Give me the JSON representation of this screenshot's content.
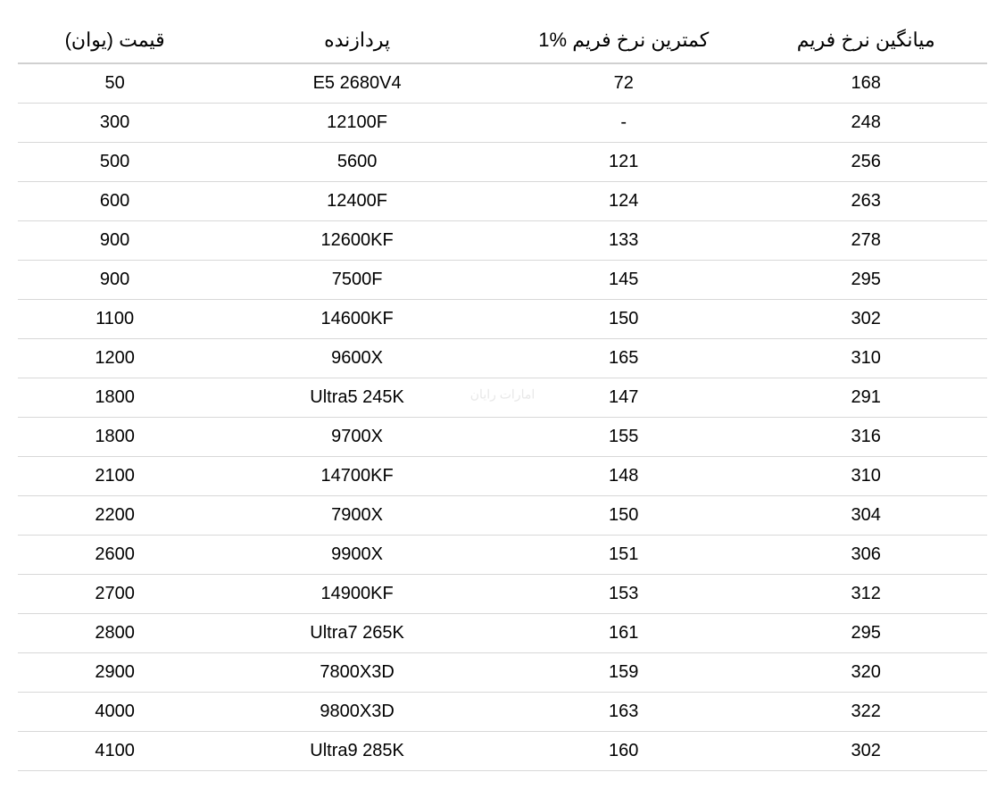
{
  "table": {
    "columns": [
      {
        "key": "price",
        "label": "قیمت (یوان)",
        "class": "col-price"
      },
      {
        "key": "cpu",
        "label": "پردازنده",
        "class": "col-cpu"
      },
      {
        "key": "low1",
        "label": "1% کمترین نرخ فریم",
        "class": "col-low"
      },
      {
        "key": "avg",
        "label": "میانگین نرخ فریم",
        "class": "col-avg"
      }
    ],
    "rows": [
      {
        "price": "50",
        "cpu": "E5 2680V4",
        "low1": "72",
        "avg": "168"
      },
      {
        "price": "300",
        "cpu": "12100F",
        "low1": "-",
        "avg": "248"
      },
      {
        "price": "500",
        "cpu": "5600",
        "low1": "121",
        "avg": "256"
      },
      {
        "price": "600",
        "cpu": "12400F",
        "low1": "124",
        "avg": "263"
      },
      {
        "price": "900",
        "cpu": "12600KF",
        "low1": "133",
        "avg": "278"
      },
      {
        "price": "900",
        "cpu": "7500F",
        "low1": "145",
        "avg": "295"
      },
      {
        "price": "1100",
        "cpu": "14600KF",
        "low1": "150",
        "avg": "302"
      },
      {
        "price": "1200",
        "cpu": "9600X",
        "low1": "165",
        "avg": "310"
      },
      {
        "price": "1800",
        "cpu": "Ultra5 245K",
        "low1": "147",
        "avg": "291"
      },
      {
        "price": "1800",
        "cpu": "9700X",
        "low1": "155",
        "avg": "316"
      },
      {
        "price": "2100",
        "cpu": "14700KF",
        "low1": "148",
        "avg": "310"
      },
      {
        "price": "2200",
        "cpu": "7900X",
        "low1": "150",
        "avg": "304"
      },
      {
        "price": "2600",
        "cpu": "9900X",
        "low1": "151",
        "avg": "306"
      },
      {
        "price": "2700",
        "cpu": "14900KF",
        "low1": "153",
        "avg": "312"
      },
      {
        "price": "2800",
        "cpu": "Ultra7 265K",
        "low1": "161",
        "avg": "295"
      },
      {
        "price": "2900",
        "cpu": "7800X3D",
        "low1": "159",
        "avg": "320"
      },
      {
        "price": "4000",
        "cpu": "9800X3D",
        "low1": "163",
        "avg": "322"
      },
      {
        "price": "4100",
        "cpu": "Ultra9 285K",
        "low1": "160",
        "avg": "302"
      }
    ],
    "border_color": "#d8d8d8",
    "header_border_color": "#d0d0d0",
    "background_color": "#ffffff",
    "text_color": "#000000",
    "header_fontsize": 22,
    "cell_fontsize": 20
  },
  "watermark": "امارات رایان"
}
